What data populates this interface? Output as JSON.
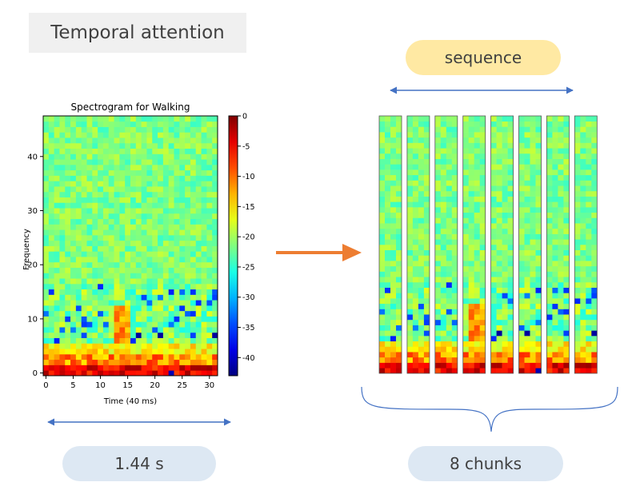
{
  "title": "Temporal attention",
  "sequence_label": "sequence",
  "duration_label": "1.44 s",
  "chunks_label": "8 chunks",
  "chunk_count": 8,
  "colors": {
    "title_bg": "#f0f0f0",
    "sequence_pill": "#ffe9a3",
    "bottom_pill": "#dde8f3",
    "double_arrow": "#4472c4",
    "main_arrow": "#ed7d31",
    "brace": "#4472c4"
  },
  "chart_data": {
    "type": "heatmap",
    "title": "Spectrogram for Walking",
    "xlabel": "Time (40 ms)",
    "ylabel": "Frequency",
    "xlim": [
      -0.5,
      31.5
    ],
    "ylim": [
      -0.5,
      47.5
    ],
    "xticks": [
      "0",
      "5",
      "10",
      "15",
      "20",
      "25",
      "30"
    ],
    "yticks": [
      "0",
      "10",
      "20",
      "30",
      "40"
    ],
    "colorbar": {
      "range": [
        -43,
        0
      ],
      "ticks": [
        "0",
        "-5",
        "-10",
        "-15",
        "-20",
        "-25",
        "-30",
        "-35",
        "-40"
      ],
      "colormap": "jet"
    },
    "grid": false
  }
}
